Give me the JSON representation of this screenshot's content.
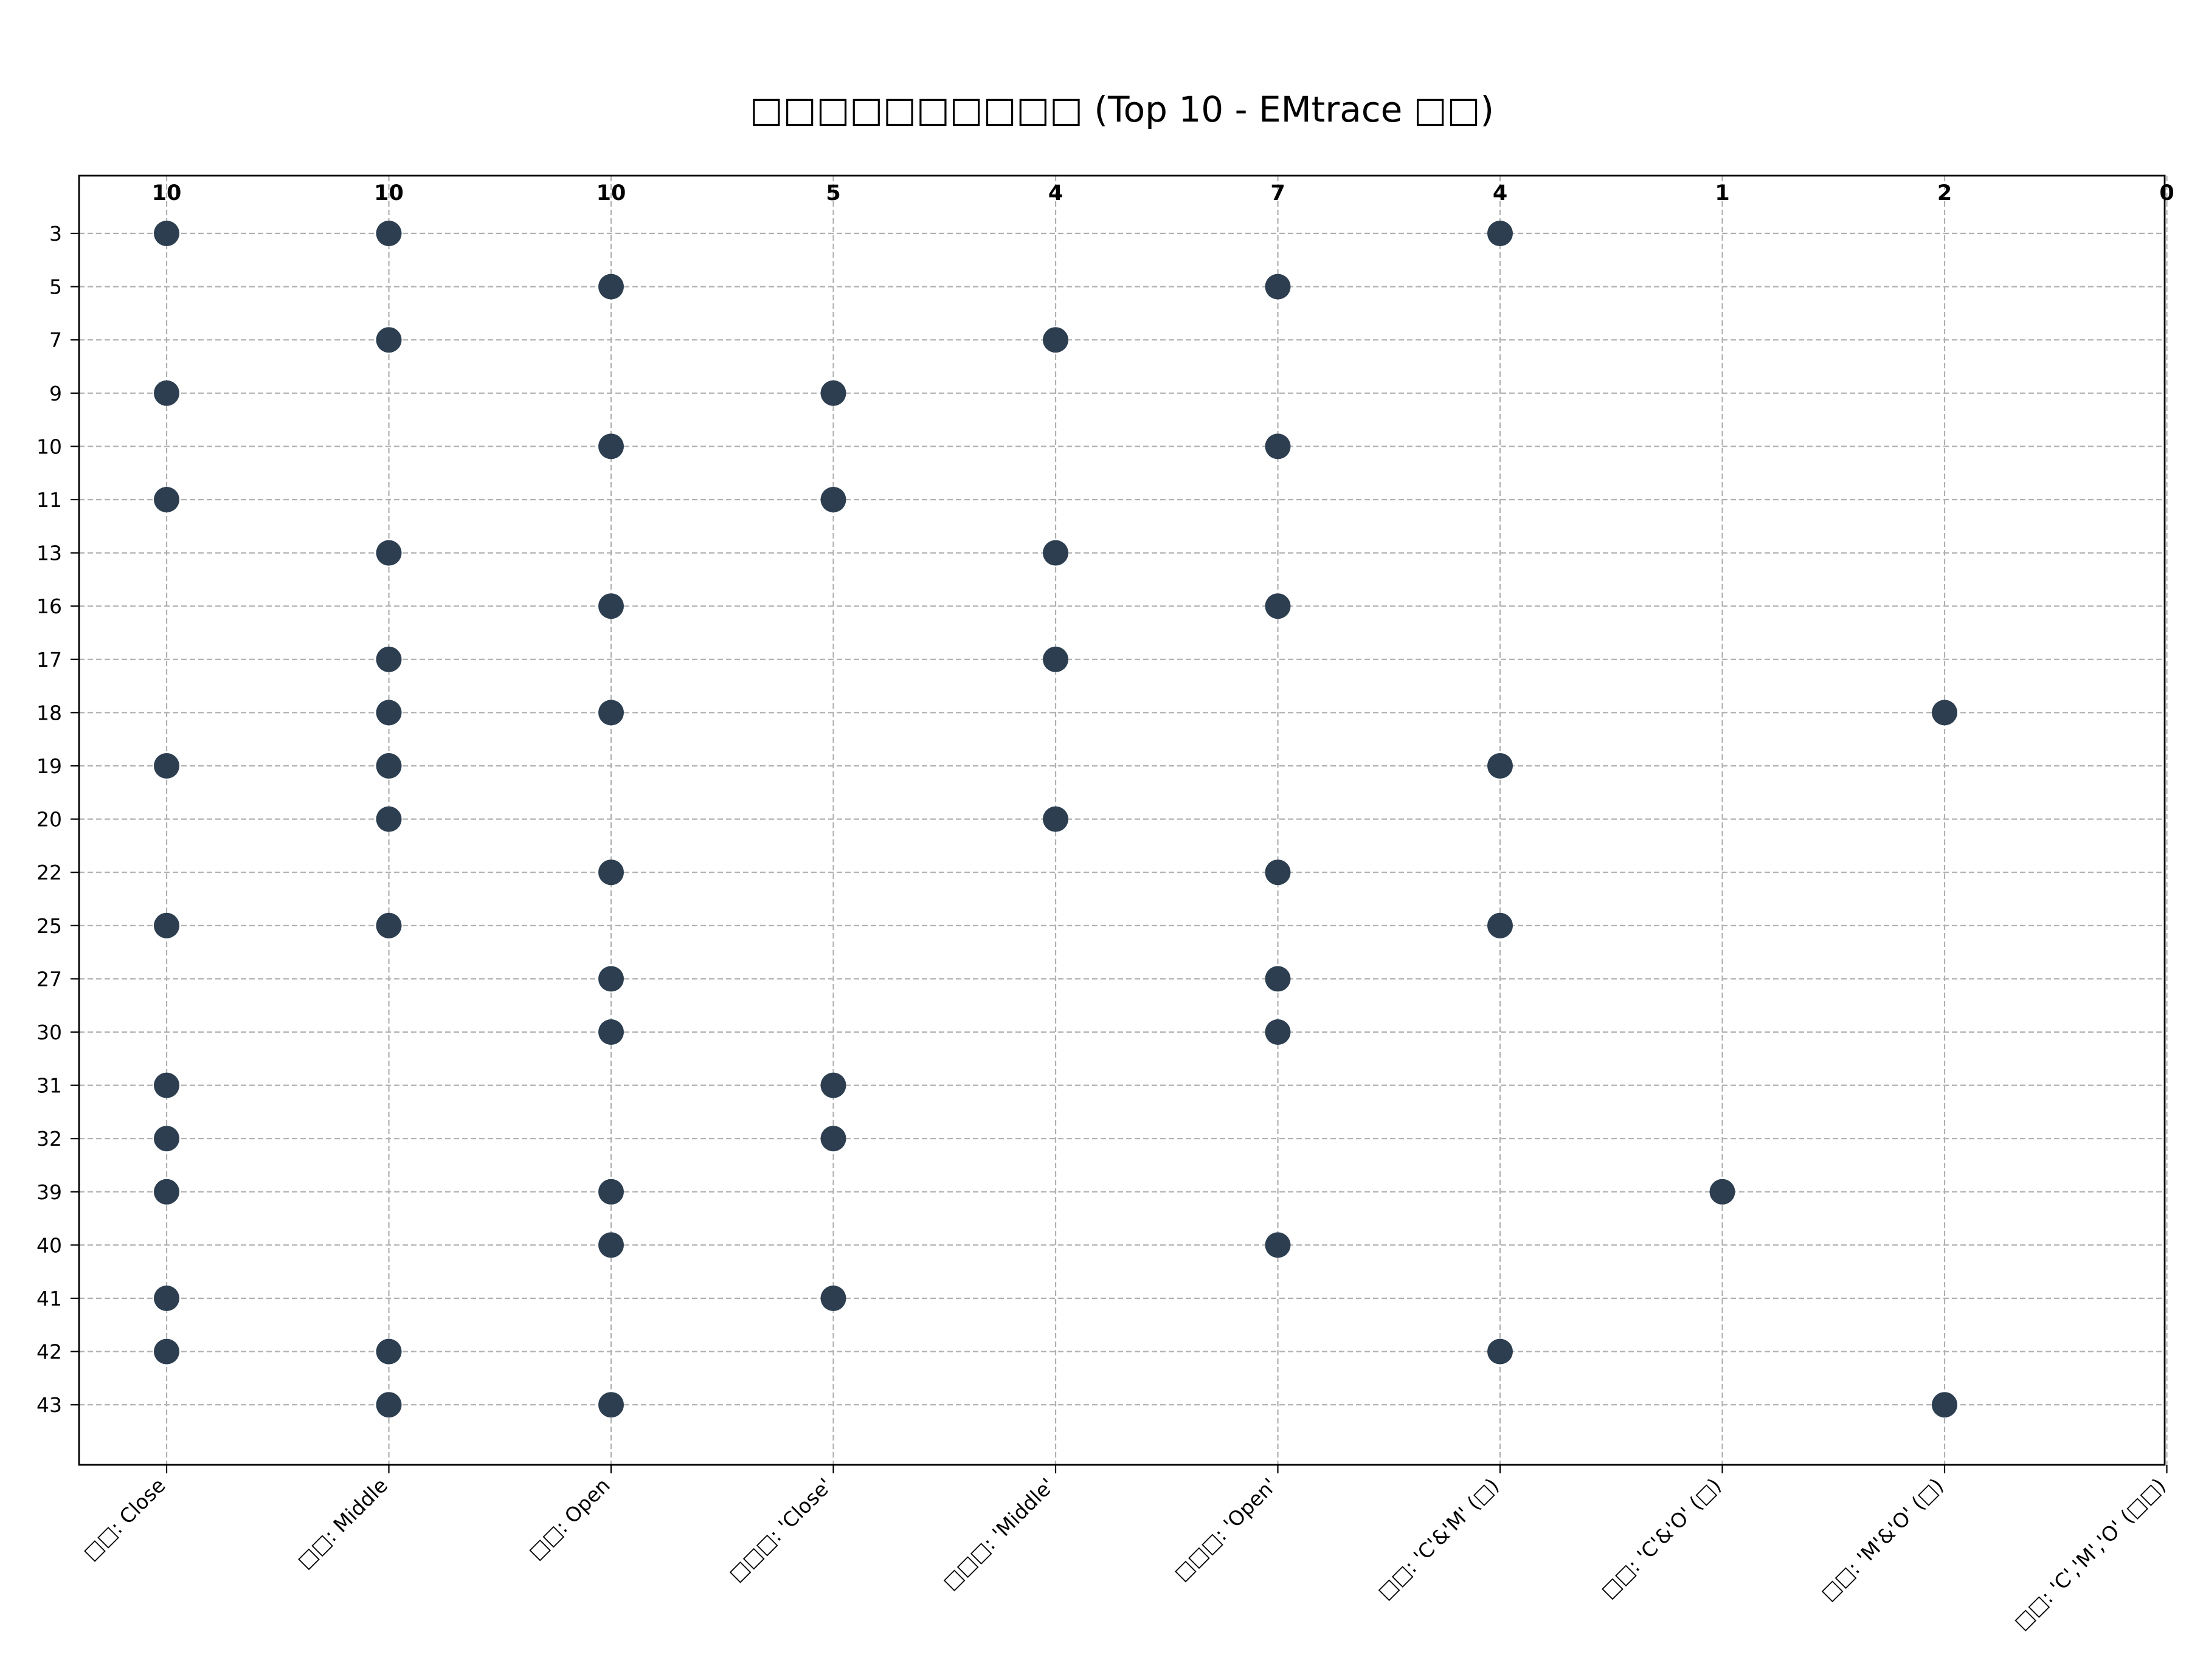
{
  "chart_data": {
    "type": "scatter",
    "title": "□□□□□□□□□□ (Top 10 - EMtrace □□)",
    "xlabel": "",
    "ylabel": "",
    "grid": true,
    "marker_color": "#2c3e50",
    "categories": [
      "□□: Close",
      "□□: Middle",
      "□□: Open",
      "□□□: 'Close'",
      "□□□: 'Middle'",
      "□□□: 'Open'",
      "□□: 'C'&'M' (□)",
      "□□: 'C'&'O' (□)",
      "□□: 'M'&'O' (□)",
      "□□: 'C','M','O' (□□)"
    ],
    "counts": [
      "10",
      "10",
      "10",
      "5",
      "4",
      "7",
      "4",
      "1",
      "2",
      "0"
    ],
    "y_categories": [
      "3",
      "5",
      "7",
      "9",
      "10",
      "11",
      "13",
      "16",
      "17",
      "18",
      "19",
      "20",
      "22",
      "25",
      "27",
      "30",
      "31",
      "32",
      "39",
      "40",
      "41",
      "42",
      "43"
    ],
    "points": [
      {
        "x": "□□: Close",
        "y": [
          "3",
          "9",
          "11",
          "19",
          "25",
          "31",
          "32",
          "39",
          "41",
          "42"
        ]
      },
      {
        "x": "□□: Middle",
        "y": [
          "3",
          "7",
          "13",
          "17",
          "18",
          "19",
          "20",
          "25",
          "42",
          "43"
        ]
      },
      {
        "x": "□□: Open",
        "y": [
          "5",
          "10",
          "16",
          "18",
          "22",
          "27",
          "30",
          "39",
          "40",
          "43"
        ]
      },
      {
        "x": "□□□: 'Close'",
        "y": [
          "9",
          "11",
          "31",
          "32",
          "41"
        ]
      },
      {
        "x": "□□□: 'Middle'",
        "y": [
          "7",
          "13",
          "17",
          "20"
        ]
      },
      {
        "x": "□□□: 'Open'",
        "y": [
          "5",
          "10",
          "16",
          "22",
          "27",
          "30",
          "40"
        ]
      },
      {
        "x": "□□: 'C'&'M' (□)",
        "y": [
          "3",
          "19",
          "25",
          "42"
        ]
      },
      {
        "x": "□□: 'C'&'O' (□)",
        "y": [
          "39"
        ]
      },
      {
        "x": "□□: 'M'&'O' (□)",
        "y": [
          "18",
          "43"
        ]
      },
      {
        "x": "□□: 'C','M','O' (□□)",
        "y": []
      }
    ]
  }
}
